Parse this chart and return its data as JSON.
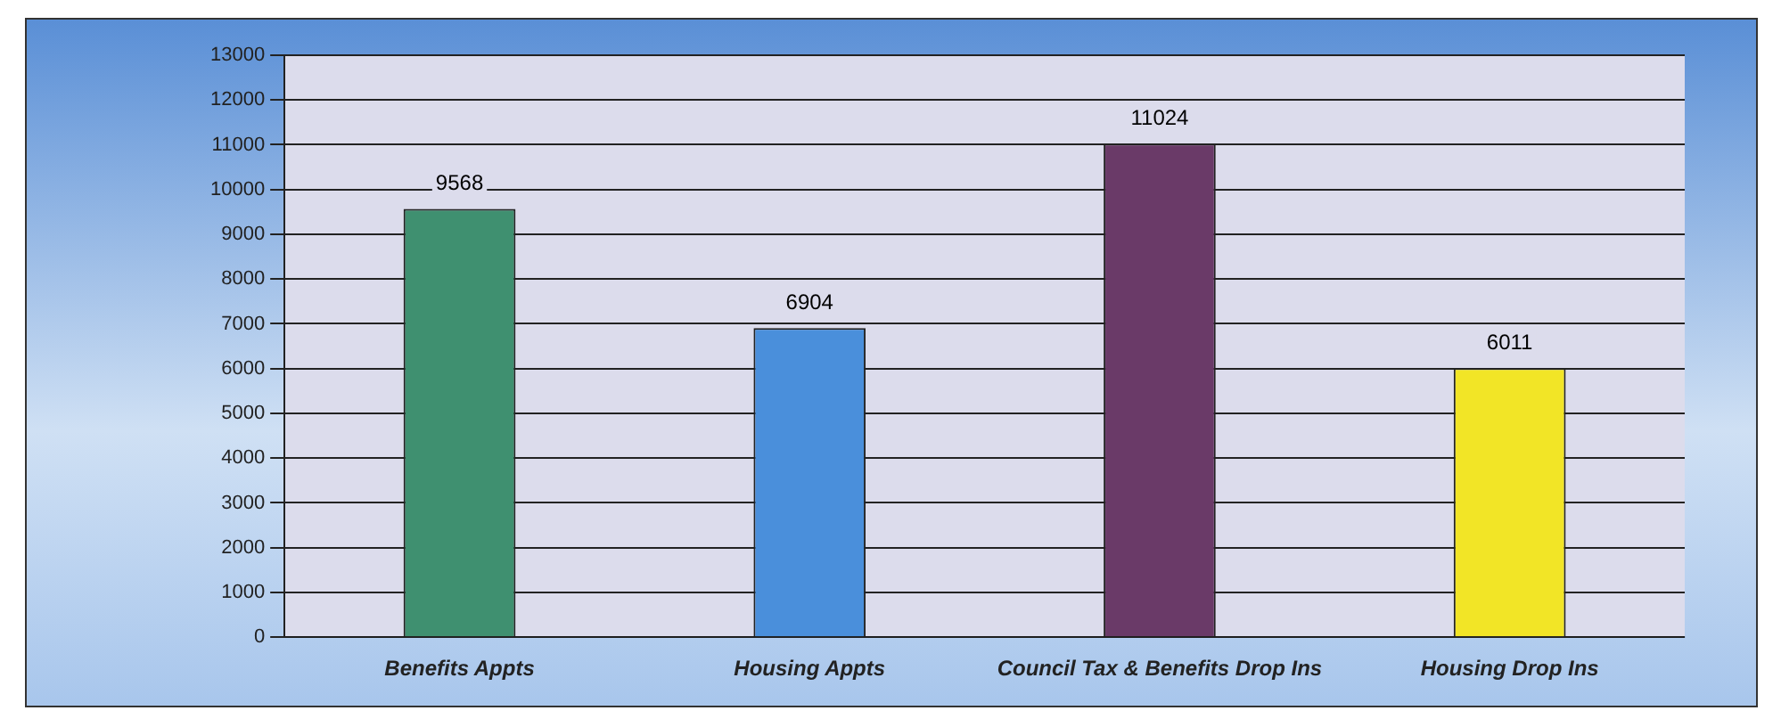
{
  "chart_data": {
    "type": "bar",
    "categories": [
      "Benefits Appts",
      "Housing Appts",
      "Council Tax & Benefits Drop Ins",
      "Housing Drop Ins"
    ],
    "values": [
      9568,
      6904,
      11024,
      6011
    ],
    "colors": [
      "#3f9070",
      "#4a8fdb",
      "#6a3a68",
      "#f2e526"
    ],
    "ylim": [
      0,
      13000
    ],
    "yticks": [
      0,
      1000,
      2000,
      3000,
      4000,
      5000,
      6000,
      7000,
      8000,
      9000,
      10000,
      11000,
      12000,
      13000
    ],
    "grid": "y",
    "data_labels": true,
    "legend": false
  }
}
